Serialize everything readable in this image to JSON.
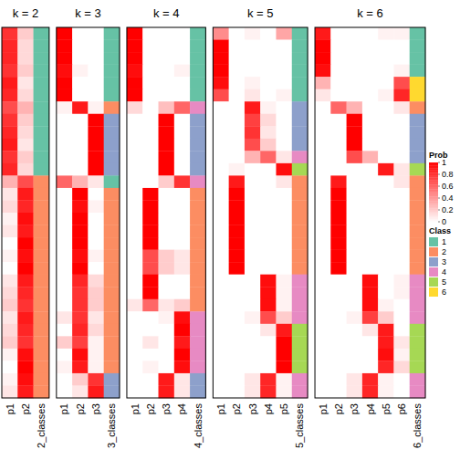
{
  "chart_data": {
    "type": "heatmap",
    "panels": [
      {
        "title": "k = 2",
        "columns": [
          "p1",
          "p2"
        ],
        "class_label": "2_classes",
        "prob": [
          [
            0.8,
            0.2
          ],
          [
            0.85,
            0.15
          ],
          [
            0.85,
            0.15
          ],
          [
            0.8,
            0.2
          ],
          [
            0.9,
            0.1
          ],
          [
            0.85,
            0.15
          ],
          [
            0.7,
            0.3
          ],
          [
            0.8,
            0.2
          ],
          [
            0.85,
            0.15
          ],
          [
            0.9,
            0.1
          ],
          [
            0.8,
            0.2
          ],
          [
            0.85,
            0.15
          ],
          [
            0.3,
            0.7
          ],
          [
            0.1,
            0.9
          ],
          [
            0.15,
            0.85
          ],
          [
            0.05,
            0.95
          ],
          [
            0.1,
            0.9
          ],
          [
            0,
            1
          ],
          [
            0.05,
            0.95
          ],
          [
            0,
            1
          ],
          [
            0.1,
            0.9
          ],
          [
            0.15,
            0.85
          ],
          [
            0.2,
            0.8
          ],
          [
            0.1,
            0.9
          ],
          [
            0.15,
            0.85
          ],
          [
            0.2,
            0.8
          ],
          [
            0.05,
            0.95
          ],
          [
            0,
            1
          ],
          [
            0.05,
            0.95
          ],
          [
            0.1,
            0.9
          ]
        ],
        "classes": [
          1,
          1,
          1,
          1,
          1,
          1,
          1,
          1,
          1,
          1,
          1,
          1,
          2,
          2,
          2,
          2,
          2,
          2,
          2,
          2,
          2,
          2,
          2,
          2,
          2,
          2,
          2,
          2,
          2,
          2
        ]
      },
      {
        "title": "k = 3",
        "columns": [
          "p1",
          "p2",
          "p3"
        ],
        "class_label": "3_classes",
        "prob": [
          [
            1,
            0,
            0
          ],
          [
            1,
            0,
            0
          ],
          [
            1,
            0,
            0
          ],
          [
            0.95,
            0.05,
            0
          ],
          [
            1,
            0,
            0
          ],
          [
            1,
            0,
            0
          ],
          [
            0.05,
            0.9,
            0.05
          ],
          [
            0,
            0,
            1
          ],
          [
            0,
            0,
            1
          ],
          [
            0,
            0,
            1
          ],
          [
            0,
            0,
            1
          ],
          [
            0,
            0,
            1
          ],
          [
            0.6,
            0.3,
            0.1
          ],
          [
            0,
            1,
            0
          ],
          [
            0,
            0.95,
            0.05
          ],
          [
            0,
            1,
            0
          ],
          [
            0,
            1,
            0
          ],
          [
            0,
            1,
            0
          ],
          [
            0,
            0.95,
            0.05
          ],
          [
            0,
            1,
            0
          ],
          [
            0,
            0.85,
            0.15
          ],
          [
            0,
            0.8,
            0.2
          ],
          [
            0,
            0.8,
            0.2
          ],
          [
            0.1,
            0.8,
            0.1
          ],
          [
            0,
            0.85,
            0.15
          ],
          [
            0.2,
            0.75,
            0.05
          ],
          [
            0,
            0.95,
            0.05
          ],
          [
            0.05,
            0.9,
            0.05
          ],
          [
            0,
            0.2,
            0.8
          ],
          [
            0,
            0.1,
            0.9
          ]
        ],
        "classes": [
          1,
          1,
          1,
          1,
          1,
          1,
          2,
          3,
          3,
          3,
          3,
          3,
          1,
          2,
          2,
          2,
          2,
          2,
          2,
          2,
          2,
          2,
          2,
          2,
          2,
          2,
          2,
          2,
          3,
          3
        ]
      },
      {
        "title": "k = 4",
        "columns": [
          "p1",
          "p2",
          "p3",
          "p4"
        ],
        "class_label": "4_classes",
        "prob": [
          [
            1,
            0,
            0,
            0
          ],
          [
            1,
            0,
            0,
            0
          ],
          [
            1,
            0,
            0,
            0
          ],
          [
            0.95,
            0,
            0,
            0.05
          ],
          [
            1,
            0,
            0,
            0
          ],
          [
            1,
            0,
            0,
            0
          ],
          [
            0.15,
            0,
            0.25,
            0.6
          ],
          [
            0,
            0,
            1,
            0
          ],
          [
            0,
            0,
            1,
            0
          ],
          [
            0,
            0,
            1,
            0
          ],
          [
            0,
            0,
            1,
            0
          ],
          [
            0,
            0,
            1,
            0
          ],
          [
            0,
            0,
            0.2,
            0.8
          ],
          [
            0,
            1,
            0,
            0
          ],
          [
            0,
            1,
            0,
            0
          ],
          [
            0,
            1,
            0,
            0
          ],
          [
            0,
            1,
            0,
            0
          ],
          [
            0,
            1,
            0,
            0
          ],
          [
            0,
            0.7,
            0.2,
            0.1
          ],
          [
            0,
            0.7,
            0.2,
            0.1
          ],
          [
            0,
            1,
            0,
            0
          ],
          [
            0,
            1,
            0,
            0
          ],
          [
            0.1,
            0.6,
            0.1,
            0.2
          ],
          [
            0,
            0,
            0.05,
            0.95
          ],
          [
            0,
            0,
            0,
            1
          ],
          [
            0,
            0.1,
            0,
            0.9
          ],
          [
            0,
            0,
            0,
            1
          ],
          [
            0,
            0.05,
            0,
            0.95
          ],
          [
            0,
            0,
            0.9,
            0.1
          ],
          [
            0,
            0,
            0.9,
            0.1
          ]
        ],
        "classes": [
          1,
          1,
          1,
          1,
          1,
          1,
          4,
          3,
          3,
          3,
          3,
          3,
          4,
          2,
          2,
          2,
          2,
          2,
          2,
          2,
          2,
          2,
          2,
          4,
          4,
          4,
          4,
          4,
          3,
          3
        ]
      },
      {
        "title": "k = 5",
        "columns": [
          "p1",
          "p2",
          "p3",
          "p4",
          "p5"
        ],
        "class_label": "5_classes",
        "prob": [
          [
            0.45,
            0,
            0.05,
            0,
            0.35
          ],
          [
            1,
            0,
            0,
            0,
            0
          ],
          [
            1,
            0,
            0,
            0,
            0
          ],
          [
            1,
            0,
            0,
            0,
            0
          ],
          [
            0.95,
            0,
            0.05,
            0,
            0
          ],
          [
            0.7,
            0,
            0.1,
            0,
            0.05
          ],
          [
            0,
            0,
            0.9,
            0.05,
            0
          ],
          [
            0,
            0,
            0.75,
            0.15,
            0
          ],
          [
            0,
            0,
            0.8,
            0.1,
            0
          ],
          [
            0,
            0,
            0.7,
            0.2,
            0
          ],
          [
            0,
            0,
            0.3,
            0.6,
            0.1
          ],
          [
            0,
            0.05,
            0,
            0,
            0.95
          ],
          [
            0,
            0.9,
            0,
            0,
            0.1
          ],
          [
            0,
            1,
            0,
            0,
            0
          ],
          [
            0,
            1,
            0,
            0,
            0
          ],
          [
            0,
            1,
            0,
            0,
            0
          ],
          [
            0,
            1,
            0,
            0,
            0
          ],
          [
            0,
            1,
            0,
            0,
            0
          ],
          [
            0,
            1,
            0,
            0,
            0
          ],
          [
            0,
            1,
            0,
            0,
            0
          ],
          [
            0,
            0,
            0,
            0.95,
            0.05
          ],
          [
            0,
            0,
            0,
            0.95,
            0.05
          ],
          [
            0,
            0,
            0,
            0.95,
            0.05
          ],
          [
            0,
            0,
            0.05,
            0.7,
            0.2
          ],
          [
            0,
            0,
            0,
            0.1,
            0.9
          ],
          [
            0,
            0,
            0,
            0,
            1
          ],
          [
            0,
            0,
            0,
            0,
            1
          ],
          [
            0,
            0,
            0,
            0,
            1
          ],
          [
            0,
            0,
            0.1,
            0.85,
            0.05
          ],
          [
            0,
            0,
            0.1,
            0.85,
            0.05
          ]
        ],
        "classes": [
          1,
          1,
          1,
          1,
          1,
          1,
          3,
          3,
          3,
          3,
          4,
          5,
          2,
          2,
          2,
          2,
          2,
          2,
          2,
          2,
          4,
          4,
          4,
          4,
          5,
          5,
          5,
          5,
          4,
          4
        ]
      },
      {
        "title": "k = 6",
        "columns": [
          "p1",
          "p2",
          "p3",
          "p4",
          "p5",
          "p6"
        ],
        "class_label": "6_classes",
        "prob": [
          [
            0.9,
            0,
            0,
            0,
            0.05,
            0.05
          ],
          [
            1,
            0,
            0,
            0,
            0,
            0
          ],
          [
            1,
            0,
            0,
            0,
            0,
            0
          ],
          [
            0.95,
            0,
            0,
            0,
            0,
            0.05
          ],
          [
            0.3,
            0,
            0,
            0,
            0,
            0.7
          ],
          [
            0.1,
            0,
            0,
            0,
            0.05,
            0.85
          ],
          [
            0,
            0.6,
            0.3,
            0,
            0,
            0.1
          ],
          [
            0,
            0,
            1,
            0,
            0,
            0
          ],
          [
            0,
            0,
            1,
            0,
            0,
            0
          ],
          [
            0,
            0,
            1,
            0,
            0,
            0
          ],
          [
            0,
            0,
            0.7,
            0.3,
            0,
            0
          ],
          [
            0,
            0,
            0,
            0,
            0.9,
            0.1
          ],
          [
            0,
            0.9,
            0,
            0,
            0,
            0.1
          ],
          [
            0,
            1,
            0,
            0,
            0,
            0
          ],
          [
            0,
            1,
            0,
            0,
            0,
            0
          ],
          [
            0,
            1,
            0,
            0,
            0,
            0
          ],
          [
            0,
            1,
            0,
            0,
            0,
            0
          ],
          [
            0,
            1,
            0,
            0,
            0,
            0
          ],
          [
            0,
            1,
            0,
            0,
            0,
            0
          ],
          [
            0,
            1,
            0,
            0,
            0,
            0
          ],
          [
            0,
            0,
            0,
            0.95,
            0,
            0.05
          ],
          [
            0,
            0,
            0,
            0.95,
            0,
            0.05
          ],
          [
            0,
            0,
            0,
            0.95,
            0.05,
            0
          ],
          [
            0,
            0,
            0.05,
            0.75,
            0.2,
            0
          ],
          [
            0,
            0,
            0,
            0.1,
            0.9,
            0
          ],
          [
            0,
            0,
            0,
            0,
            0.9,
            0.1
          ],
          [
            0,
            0,
            0,
            0,
            0.95,
            0.05
          ],
          [
            0,
            0,
            0,
            0,
            0.85,
            0.15
          ],
          [
            0,
            0,
            0.1,
            0.85,
            0.05,
            0
          ],
          [
            0,
            0,
            0.1,
            0.85,
            0.05,
            0
          ]
        ],
        "classes": [
          1,
          1,
          1,
          1,
          6,
          6,
          2,
          3,
          3,
          3,
          3,
          5,
          2,
          2,
          2,
          2,
          2,
          2,
          2,
          2,
          4,
          4,
          4,
          4,
          5,
          5,
          5,
          5,
          4,
          4
        ]
      }
    ],
    "color_bar": {
      "title": "Prob",
      "range": [
        0,
        1
      ],
      "ticks": [
        0,
        0.2,
        0.4,
        0.6,
        0.8,
        1
      ],
      "color": "#ff0000"
    },
    "class_legend": {
      "title": "Class",
      "labels": [
        "1",
        "2",
        "3",
        "4",
        "5",
        "6"
      ],
      "colors": [
        "#66c2a5",
        "#fc8d62",
        "#8da0cb",
        "#e78ac3",
        "#a6d854",
        "#ffd92f"
      ]
    }
  }
}
